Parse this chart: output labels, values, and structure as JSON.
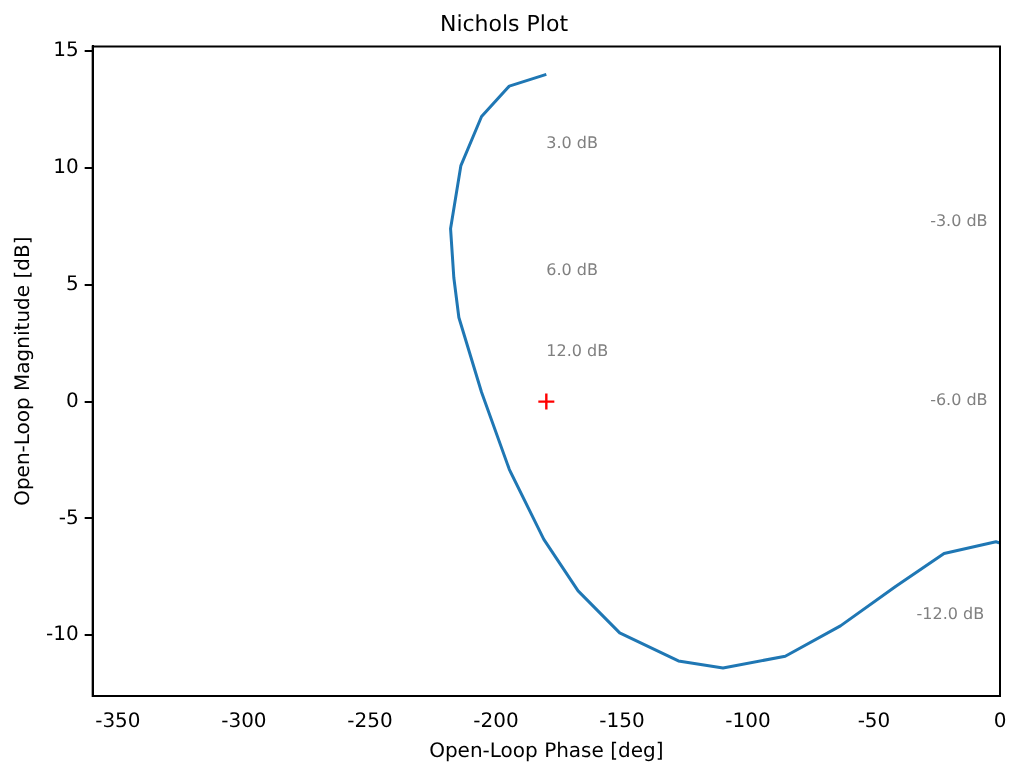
{
  "chart_data": {
    "type": "line",
    "title": "Nichols Plot",
    "xlabel": "Open-Loop Phase [deg]",
    "ylabel": "Open-Loop Magnitude [dB]",
    "xlim": [
      -360,
      0
    ],
    "xticks": [
      -350,
      -300,
      -250,
      -200,
      -150,
      -100,
      -50,
      0
    ],
    "ylim": [
      -12.6,
      15.2
    ],
    "yticks": [
      -10,
      -5,
      0,
      5,
      10,
      15
    ],
    "series": [
      {
        "type": "line",
        "color": "#1f77b4",
        "x": [
          -180,
          -194.7,
          -205.7,
          -213.9,
          -218,
          -216.7,
          -214.7,
          -205.7,
          -194.7,
          -181,
          -167.4,
          -150.9,
          -127.6,
          -109.9,
          -85.2,
          -63.3,
          -41.3,
          -22.2,
          -1.6,
          0
        ],
        "values": [
          14.0,
          13.5,
          12.2,
          10.1,
          7.4,
          5.3,
          3.6,
          0.4,
          -2.9,
          -5.9,
          -8.1,
          -9.9,
          -11.1,
          -11.4,
          -10.9,
          -9.6,
          -7.9,
          -6.5,
          -6.0,
          -6.05
        ]
      },
      {
        "type": "scatter",
        "color": "#ff0000",
        "marker": "cross",
        "x": [
          -180
        ],
        "values": [
          0
        ]
      }
    ],
    "annotations": [
      "3.0 dB",
      "6.0 dB",
      "12.0 dB",
      "-3.0 dB",
      "-6.0 dB",
      "-12.0 dB"
    ]
  }
}
